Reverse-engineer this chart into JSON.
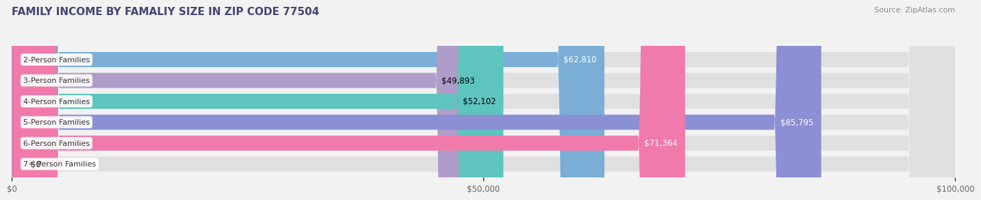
{
  "title": "FAMILY INCOME BY FAMALIY SIZE IN ZIP CODE 77504",
  "source": "Source: ZipAtlas.com",
  "categories": [
    "2-Person Families",
    "3-Person Families",
    "4-Person Families",
    "5-Person Families",
    "6-Person Families",
    "7+ Person Families"
  ],
  "values": [
    62810,
    49893,
    52102,
    85795,
    71364,
    0
  ],
  "bar_colors": [
    "#7aaed6",
    "#b09cc8",
    "#5ec4be",
    "#8b8fd4",
    "#f07aaa",
    "#f5d5a8"
  ],
  "label_colors": [
    "white",
    "black",
    "black",
    "white",
    "white",
    "black"
  ],
  "labels": [
    "$62,810",
    "$49,893",
    "$52,102",
    "$85,795",
    "$71,364",
    "$0"
  ],
  "xlim": [
    0,
    100000
  ],
  "xticks": [
    0,
    50000,
    100000
  ],
  "xticklabels": [
    "$0",
    "$50,000",
    "$100,000"
  ],
  "background_color": "#f2f2f2",
  "bar_bg_color": "#e0e0e0",
  "bar_height": 0.72,
  "title_fontsize": 11,
  "label_fontsize": 8.5,
  "tick_fontsize": 8.5,
  "cat_label_fontsize": 8
}
